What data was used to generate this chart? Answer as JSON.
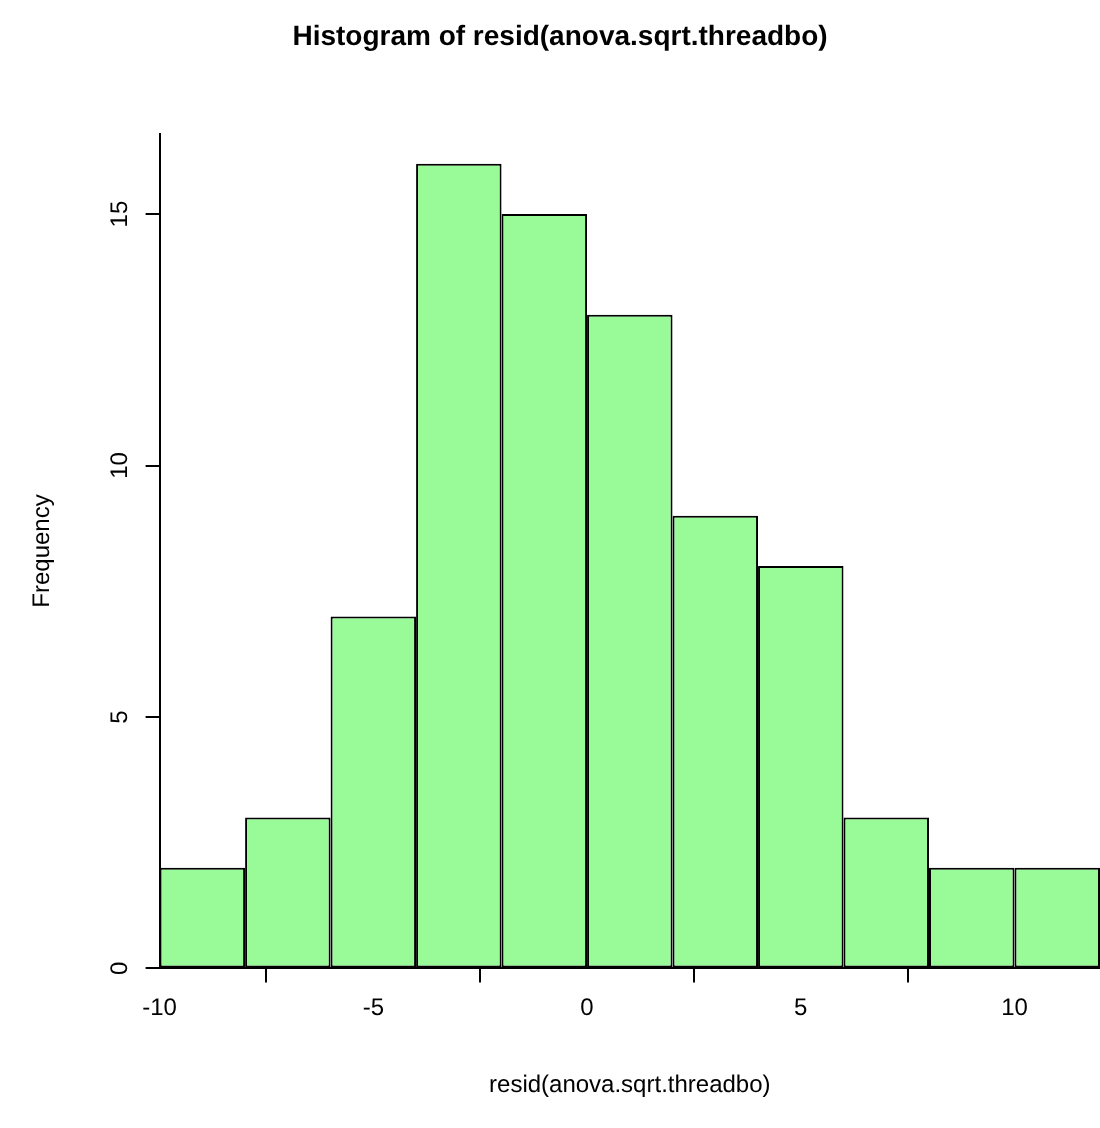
{
  "chart_data": {
    "type": "histogram",
    "title": "Histogram of resid(anova.sqrt.threadbo)",
    "xlabel": "resid(anova.sqrt.threadbo)",
    "ylabel": "Frequency",
    "bins": [
      -10,
      -8,
      -6,
      -4,
      -2,
      0,
      2,
      4,
      6,
      8,
      10,
      12
    ],
    "values": [
      2,
      3,
      7,
      16,
      15,
      13,
      9,
      8,
      3,
      2,
      2
    ],
    "color": "#98fb98",
    "xlim": [
      -10,
      12
    ],
    "ylim": [
      0,
      16.6
    ],
    "xticks": [
      -10,
      -5,
      0,
      5,
      10
    ],
    "yticks": [
      0,
      5,
      10,
      15
    ]
  }
}
